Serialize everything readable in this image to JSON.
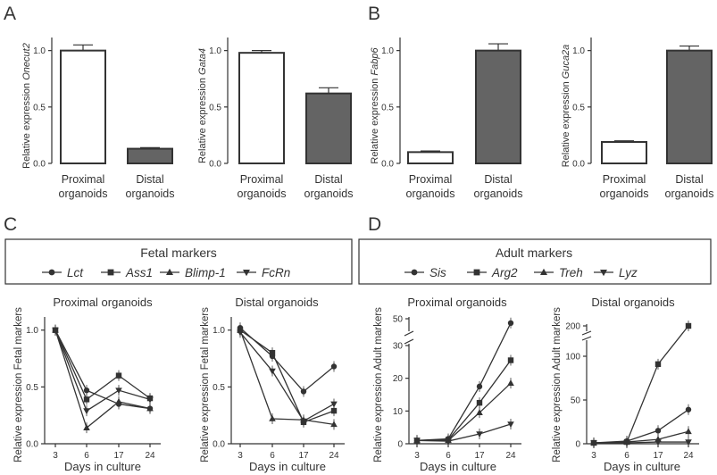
{
  "panels": {
    "A": "A",
    "B": "B",
    "C": "C",
    "D": "D"
  },
  "chart_data": [
    {
      "type": "bar",
      "panel": "A",
      "categories": [
        "Proximal organoids",
        "Distal organoids"
      ],
      "values": [
        1.0,
        0.13
      ],
      "errors": [
        0.05,
        0.01
      ],
      "ylabel_prefix": "Relative expression",
      "ylabel_gene": "Onecut2",
      "yticks": [
        "0.0",
        "0.5",
        "1.0"
      ],
      "ylim": [
        0,
        1.1
      ],
      "bar_colors": [
        "#ffffff",
        "#646464"
      ]
    },
    {
      "type": "bar",
      "panel": "A",
      "categories": [
        "Proximal organoids",
        "Distal organoids"
      ],
      "values": [
        0.98,
        0.62
      ],
      "errors": [
        0.02,
        0.05
      ],
      "ylabel_prefix": "Relative expression",
      "ylabel_gene": "Gata4",
      "yticks": [
        "0.0",
        "0.5",
        "1.0"
      ],
      "ylim": [
        0,
        1.1
      ],
      "bar_colors": [
        "#ffffff",
        "#646464"
      ]
    },
    {
      "type": "bar",
      "panel": "B",
      "categories": [
        "Proximal organoids",
        "Distal organoids"
      ],
      "values": [
        0.1,
        1.0
      ],
      "errors": [
        0.01,
        0.06
      ],
      "ylabel_prefix": "Relative expression",
      "ylabel_gene": "Fabp6",
      "yticks": [
        "0.0",
        "0.5",
        "1.0"
      ],
      "ylim": [
        0,
        1.1
      ],
      "bar_colors": [
        "#ffffff",
        "#646464"
      ]
    },
    {
      "type": "bar",
      "panel": "B",
      "categories": [
        "Proximal organoids",
        "Distal organoids"
      ],
      "values": [
        0.19,
        1.0
      ],
      "errors": [
        0.01,
        0.04
      ],
      "ylabel_prefix": "Relative expression",
      "ylabel_gene": "Guca2a",
      "yticks": [
        "0.0",
        "0.5",
        "1.0"
      ],
      "ylim": [
        0,
        1.1
      ],
      "bar_colors": [
        "#ffffff",
        "#646464"
      ]
    },
    {
      "type": "line",
      "panel": "C",
      "title": "Proximal organoids",
      "xlabel": "Days in culture",
      "ylabel": "Relative expression Fetal markers",
      "x": [
        3,
        6,
        17,
        24
      ],
      "xticks": [
        "3",
        "6",
        "17",
        "24"
      ],
      "yticks": [
        "0.0",
        "0.5",
        "1.0"
      ],
      "ylim": [
        0,
        1.1
      ],
      "series": [
        {
          "name": "Lct",
          "marker": "circle",
          "values": [
            1.0,
            0.47,
            0.35,
            0.31
          ]
        },
        {
          "name": "Ass1",
          "marker": "square",
          "values": [
            1.0,
            0.39,
            0.6,
            0.4
          ]
        },
        {
          "name": "Blimp-1",
          "marker": "triangle-up",
          "values": [
            1.0,
            0.14,
            0.37,
            0.31
          ]
        },
        {
          "name": "FcRn",
          "marker": "triangle-down",
          "values": [
            1.0,
            0.29,
            0.47,
            0.39
          ]
        }
      ]
    },
    {
      "type": "line",
      "panel": "C",
      "title": "Distal organoids",
      "xlabel": "Days in culture",
      "ylabel": "Relative expression Fetal markers",
      "x": [
        3,
        6,
        17,
        24
      ],
      "xticks": [
        "3",
        "6",
        "17",
        "24"
      ],
      "yticks": [
        "0.0",
        "0.5",
        "1.0"
      ],
      "ylim": [
        0,
        1.1
      ],
      "series": [
        {
          "name": "Lct",
          "marker": "circle",
          "values": [
            1.02,
            0.77,
            0.46,
            0.68
          ]
        },
        {
          "name": "Ass1",
          "marker": "square",
          "values": [
            1.0,
            0.8,
            0.19,
            0.29
          ]
        },
        {
          "name": "Blimp-1",
          "marker": "triangle-up",
          "values": [
            1.0,
            0.22,
            0.21,
            0.17
          ]
        },
        {
          "name": "FcRn",
          "marker": "triangle-down",
          "values": [
            0.98,
            0.64,
            0.2,
            0.35
          ]
        }
      ]
    },
    {
      "type": "line",
      "panel": "D",
      "title": "Proximal organoids",
      "xlabel": "Days in culture",
      "ylabel": "Relative expression Adult markers",
      "x": [
        3,
        6,
        17,
        24
      ],
      "xticks": [
        "3",
        "6",
        "17",
        "24"
      ],
      "yticks": [
        "0",
        "10",
        "20",
        "30",
        "50"
      ],
      "ylim": [
        0,
        50
      ],
      "axis_break": [
        30,
        45
      ],
      "series": [
        {
          "name": "Sis",
          "marker": "circle",
          "values": [
            1,
            1.5,
            17.5,
            48
          ]
        },
        {
          "name": "Arg2",
          "marker": "square",
          "values": [
            1,
            1.2,
            12.5,
            25.5
          ]
        },
        {
          "name": "Treh",
          "marker": "triangle-up",
          "values": [
            1,
            1.0,
            9.5,
            18.5
          ]
        },
        {
          "name": "Lyz",
          "marker": "triangle-down",
          "values": [
            1,
            0.8,
            3.0,
            6.0
          ]
        }
      ]
    },
    {
      "type": "line",
      "panel": "D",
      "title": "Distal organoids",
      "xlabel": "Days in culture",
      "ylabel": "Relative expression Adult markers",
      "x": [
        3,
        6,
        17,
        24
      ],
      "xticks": [
        "3",
        "6",
        "17",
        "24"
      ],
      "yticks": [
        "0",
        "50",
        "100",
        "200"
      ],
      "ylim": [
        0,
        200
      ],
      "axis_break": [
        110,
        190
      ],
      "series": [
        {
          "name": "Sis",
          "marker": "circle",
          "values": [
            1,
            3,
            15,
            39
          ]
        },
        {
          "name": "Arg2",
          "marker": "square",
          "values": [
            1,
            2,
            91,
            200
          ]
        },
        {
          "name": "Treh",
          "marker": "triangle-up",
          "values": [
            1,
            2,
            5,
            14
          ]
        },
        {
          "name": "Lyz",
          "marker": "triangle-down",
          "values": [
            1,
            1,
            2,
            2
          ]
        }
      ]
    }
  ],
  "legends": {
    "fetal": {
      "title": "Fetal markers",
      "items": [
        "Lct",
        "Ass1",
        "Blimp-1",
        "FcRn"
      ]
    },
    "adult": {
      "title": "Adult markers",
      "items": [
        "Sis",
        "Arg2",
        "Treh",
        "Lyz"
      ]
    }
  },
  "colors": {
    "ink": "#333333",
    "bar_dark": "#646464",
    "bar_light": "#ffffff"
  }
}
